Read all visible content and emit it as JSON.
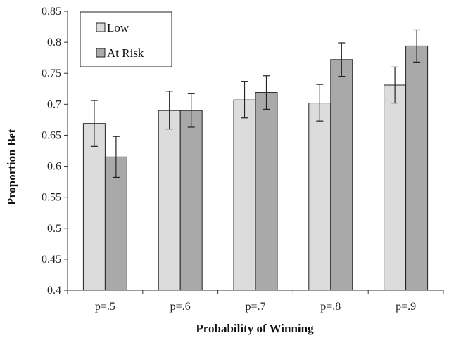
{
  "chart_data": {
    "type": "bar",
    "xlabel": "Probability of Winning",
    "ylabel": "Proportion Bet",
    "ylim": [
      0.4,
      0.85
    ],
    "yticks": [
      "0.4",
      "0.45",
      "0.5",
      "0.55",
      "0.6",
      "0.65",
      "0.7",
      "0.75",
      "0.8",
      "0.85"
    ],
    "categories": [
      "p=.5",
      "p=.6",
      "p=.7",
      "p=.8",
      "p=.9"
    ],
    "series": [
      {
        "name": "Low",
        "color": "#dcdcdc",
        "values": [
          0.669,
          0.69,
          0.707,
          0.702,
          0.731
        ],
        "error_low": [
          0.632,
          0.66,
          0.678,
          0.673,
          0.702
        ],
        "error_high": [
          0.706,
          0.721,
          0.737,
          0.732,
          0.76
        ]
      },
      {
        "name": "At Risk",
        "color": "#a9a9a9",
        "values": [
          0.615,
          0.69,
          0.719,
          0.772,
          0.794
        ],
        "error_low": [
          0.582,
          0.663,
          0.692,
          0.745,
          0.768
        ],
        "error_high": [
          0.648,
          0.717,
          0.746,
          0.799,
          0.82
        ]
      }
    ],
    "legend": "top-left",
    "grid": false
  }
}
